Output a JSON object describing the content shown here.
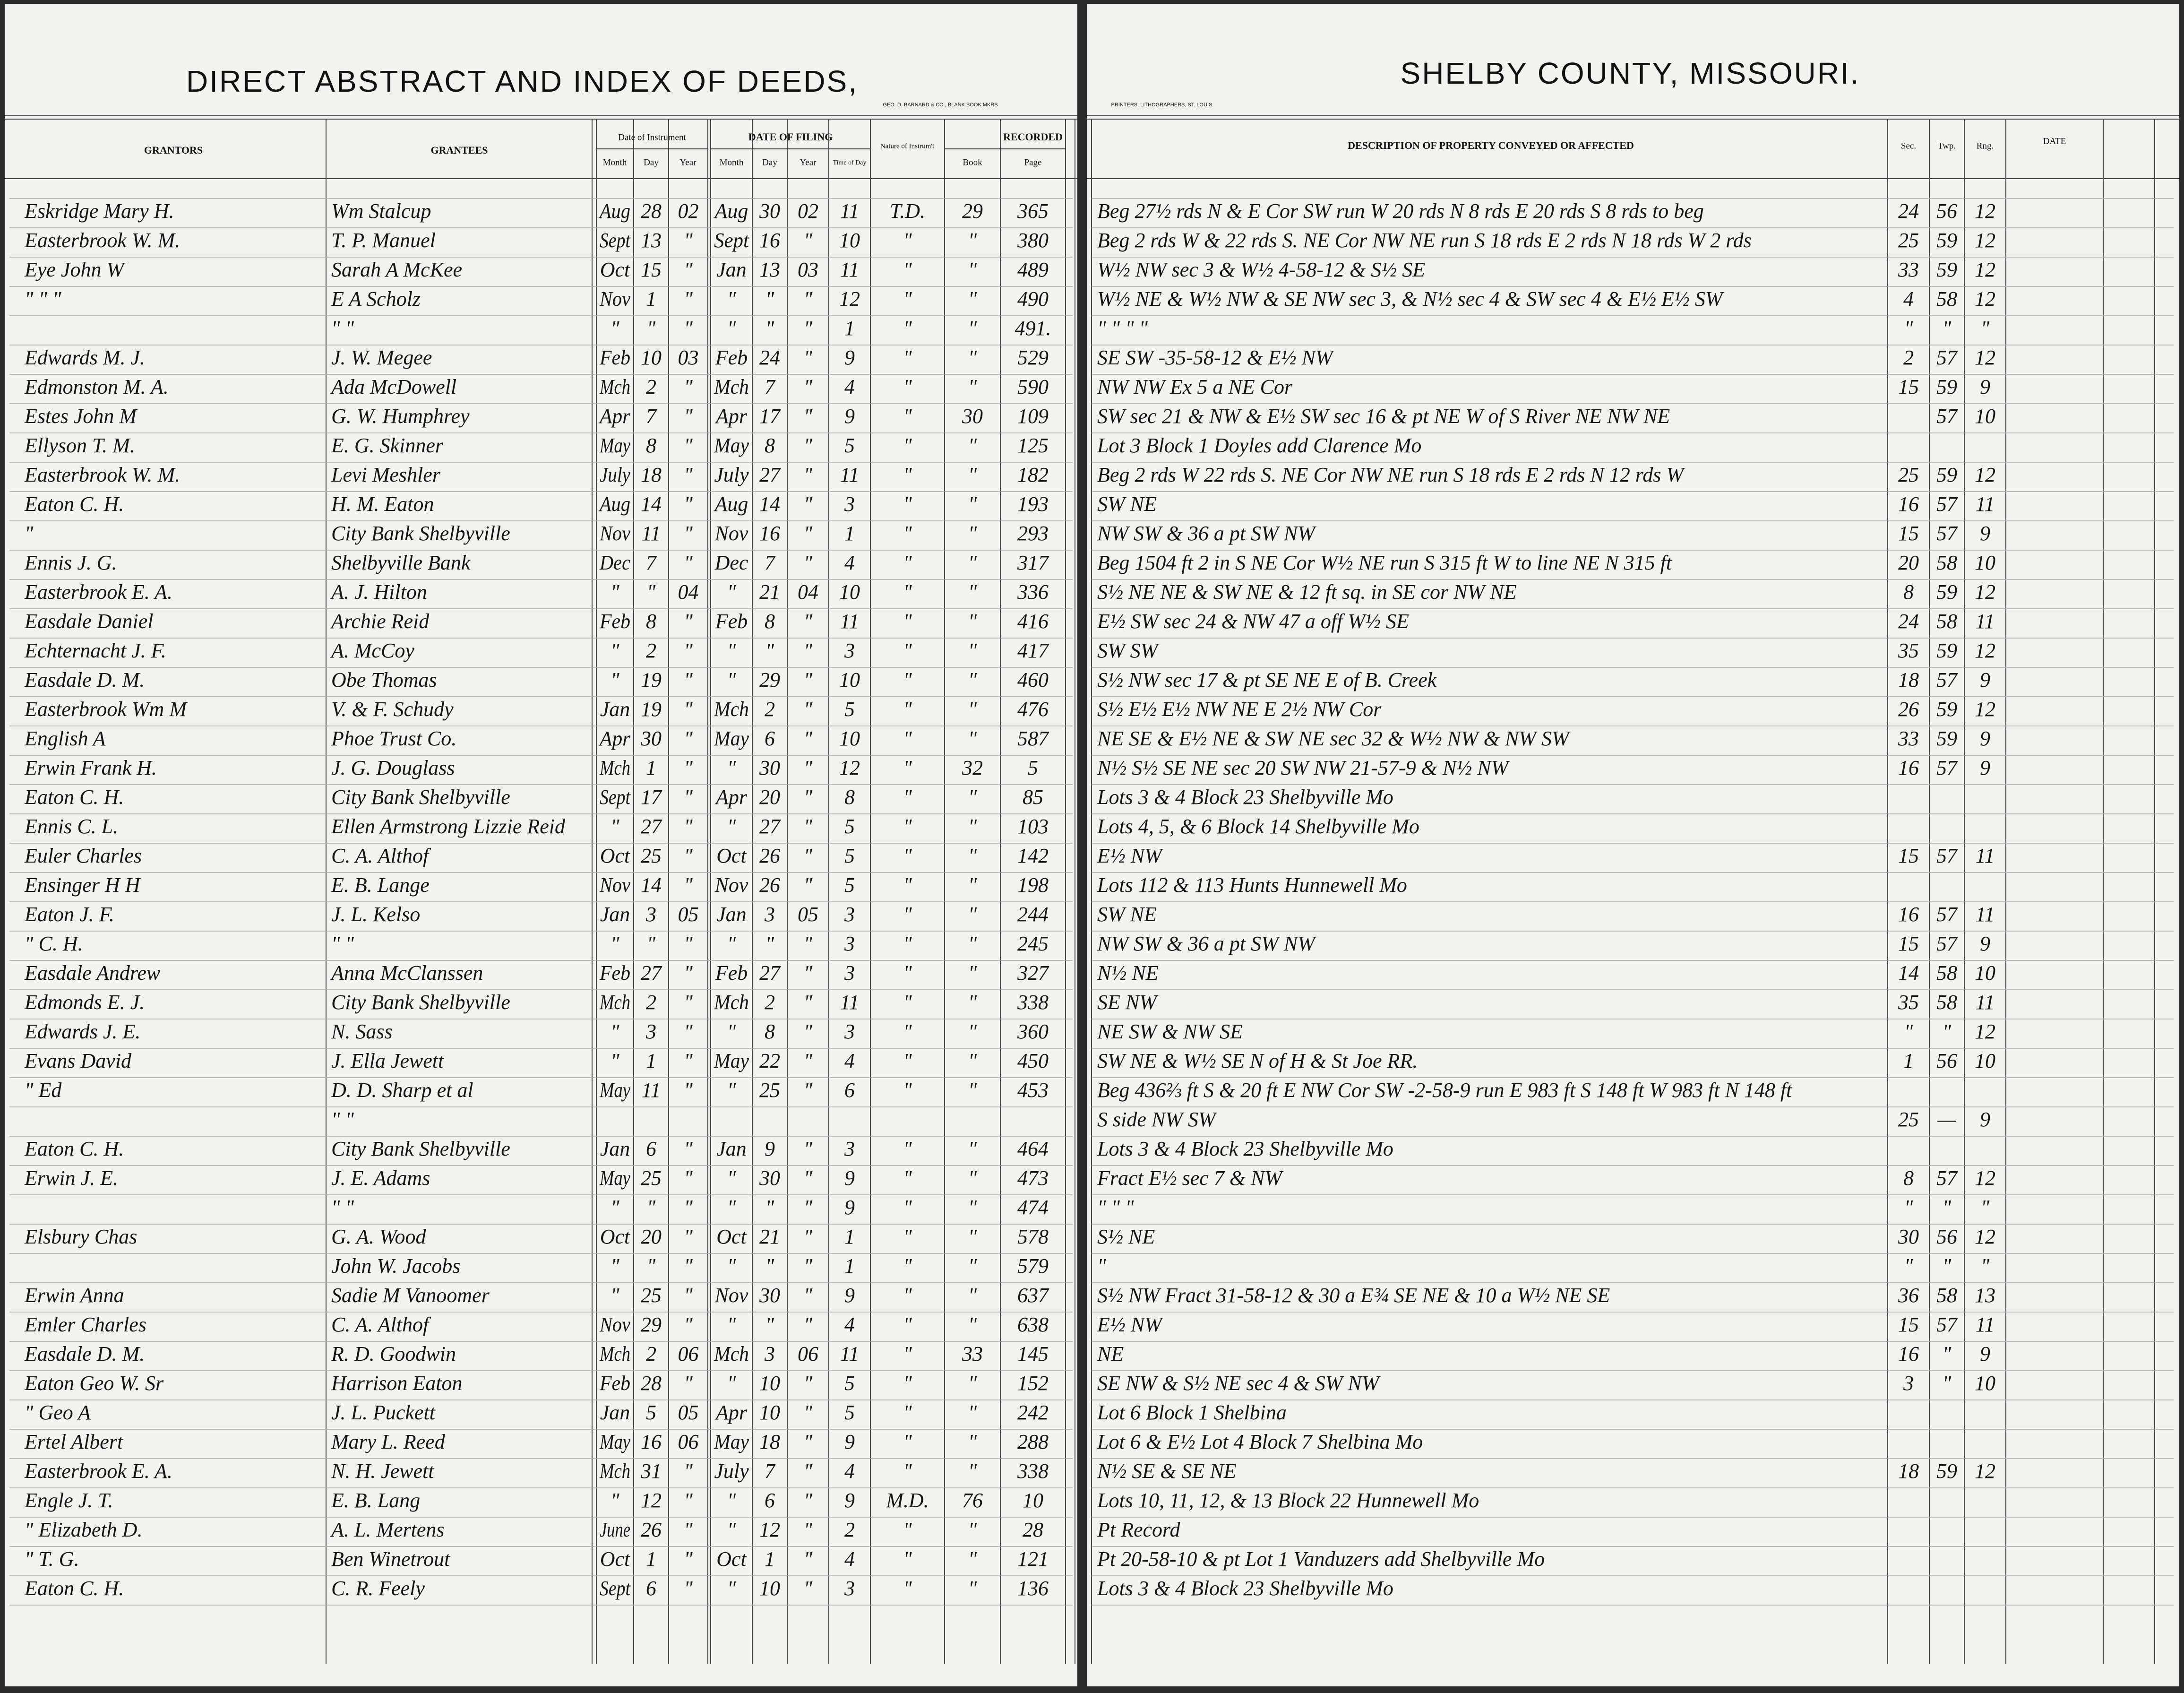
{
  "header": {
    "left_title": "DIRECT ABSTRACT AND INDEX OF DEEDS,",
    "right_title": "SHELBY COUNTY, MISSOURI.",
    "left_imprint": "GEO. D. BARNARD & CO., BLANK BOOK MKRS",
    "right_imprint": "PRINTERS, LITHOGRAPHERS, ST. LOUIS."
  },
  "table": {
    "columns": {
      "grantors": "GRANTORS",
      "grantees": "GRANTEES",
      "instrument_date": "Date of Instrument",
      "filing_date": "DATE OF FILING",
      "nature": "Nature of Instrum't",
      "recorded": "RECORDED",
      "description": "DESCRIPTION OF PROPERTY CONVEYED OR AFFECTED",
      "sec": "Sec.",
      "twp": "Twp.",
      "rng": "Rng.",
      "date": "DATE"
    },
    "subcolumns": {
      "instrument": [
        "Month",
        "Day",
        "Year"
      ],
      "filing": [
        "Month",
        "Day",
        "Year",
        "Time of Day"
      ],
      "recorded": [
        "Book",
        "Page"
      ]
    },
    "rows": [
      [
        "Eskridge Mary H.",
        "Wm Stalcup",
        "Aug",
        "28",
        "02",
        "Aug",
        "30",
        "02",
        "11",
        "T.D.",
        "29",
        "365",
        "Beg 27½ rds N & E Cor SW run W 20 rds N 8 rds E 20 rds S 8 rds to beg",
        "24",
        "56",
        "12"
      ],
      [
        "Easterbrook W. M.",
        "T. P. Manuel",
        "Sept",
        "13",
        "\"",
        "Sept",
        "16",
        "\"",
        "10",
        "\"",
        "\"",
        "380",
        "Beg 2 rds W & 22 rds S. NE Cor NW NE run S 18 rds E 2 rds N 18 rds W 2 rds",
        "25",
        "59",
        "12"
      ],
      [
        "Eye John W",
        "Sarah A McKee",
        "Oct",
        "15",
        "\"",
        "Jan",
        "13",
        "03",
        "11",
        "\"",
        "\"",
        "489",
        "W½ NW sec 3 & W½ 4-58-12 & S½ SE",
        "33",
        "59",
        "12"
      ],
      [
        "\"  \"  \"",
        "E A Scholz",
        "Nov",
        "1",
        "\"",
        "\"",
        "\"",
        "\"",
        "12",
        "\"",
        "\"",
        "490",
        "W½ NE & W½ NW & SE NW sec 3, & N½ sec 4 & SW sec 4 & E½ E½ SW",
        "4",
        "58",
        "12"
      ],
      [
        null,
        "\"  \"",
        "\"",
        "\"",
        "\"",
        "\"",
        "\"",
        "\"",
        "1",
        "\"",
        "\"",
        "491.",
        "\"  \"  \"  \"",
        "\"",
        "\"",
        "\""
      ],
      [
        "Edwards M. J.",
        "J. W. Megee",
        "Feb",
        "10",
        "03",
        "Feb",
        "24",
        "\"",
        "9",
        "\"",
        "\"",
        "529",
        "SE SW -35-58-12 & E½ NW",
        "2",
        "57",
        "12"
      ],
      [
        "Edmonston M. A.",
        "Ada McDowell",
        "Mch",
        "2",
        "\"",
        "Mch",
        "7",
        "\"",
        "4",
        "\"",
        "\"",
        "590",
        "NW NW Ex 5 a NE Cor",
        "15",
        "59",
        "9"
      ],
      [
        "Estes John M",
        "G. W. Humphrey",
        "Apr",
        "7",
        "\"",
        "Apr",
        "17",
        "\"",
        "9",
        "\"",
        "30",
        "109",
        "SW sec 21 & NW & E½ SW sec 16 & pt NE W of S River NE NW NE",
        null,
        "57",
        "10"
      ],
      [
        "Ellyson T. M.",
        "E. G. Skinner",
        "May",
        "8",
        "\"",
        "May",
        "8",
        "\"",
        "5",
        "\"",
        "\"",
        "125",
        "Lot 3 Block 1 Doyles add Clarence Mo",
        null,
        null,
        null
      ],
      [
        "Easterbrook W. M.",
        "Levi Meshler",
        "July",
        "18",
        "\"",
        "July",
        "27",
        "\"",
        "11",
        "\"",
        "\"",
        "182",
        "Beg 2 rds W 22 rds S. NE Cor NW NE run S 18 rds E 2 rds N 12 rds W",
        "25",
        "59",
        "12"
      ],
      [
        "Eaton C. H.",
        "H. M. Eaton",
        "Aug",
        "14",
        "\"",
        "Aug",
        "14",
        "\"",
        "3",
        "\"",
        "\"",
        "193",
        "SW NE",
        "16",
        "57",
        "11"
      ],
      [
        "\"",
        "City Bank Shelbyville",
        "Nov",
        "11",
        "\"",
        "Nov",
        "16",
        "\"",
        "1",
        "\"",
        "\"",
        "293",
        "NW SW & 36 a pt SW NW",
        "15",
        "57",
        "9"
      ],
      [
        "Ennis J. G.",
        "Shelbyville Bank",
        "Dec",
        "7",
        "\"",
        "Dec",
        "7",
        "\"",
        "4",
        "\"",
        "\"",
        "317",
        "Beg 1504 ft 2 in S NE Cor W½ NE run S 315 ft W to line NE N 315 ft",
        "20",
        "58",
        "10"
      ],
      [
        "Easterbrook E. A.",
        "A. J. Hilton",
        "\"",
        "\"",
        "04",
        "\"",
        "21",
        "04",
        "10",
        "\"",
        "\"",
        "336",
        "S½ NE NE & SW NE & 12 ft sq. in SE cor NW NE",
        "8",
        "59",
        "12"
      ],
      [
        "Easdale Daniel",
        "Archie Reid",
        "Feb",
        "8",
        "\"",
        "Feb",
        "8",
        "\"",
        "11",
        "\"",
        "\"",
        "416",
        "E½ SW sec 24 & NW 47 a off W½ SE",
        "24",
        "58",
        "11"
      ],
      [
        "Echternacht J. F.",
        "A. McCoy",
        "\"",
        "2",
        "\"",
        "\"",
        "\"",
        "\"",
        "3",
        "\"",
        "\"",
        "417",
        "SW SW",
        "35",
        "59",
        "12"
      ],
      [
        "Easdale D. M.",
        "Obe Thomas",
        "\"",
        "19",
        "\"",
        "\"",
        "29",
        "\"",
        "10",
        "\"",
        "\"",
        "460",
        "S½ NW sec 17 & pt SE NE  E of B. Creek",
        "18",
        "57",
        "9"
      ],
      [
        "Easterbrook Wm M",
        "V. & F. Schudy",
        "Jan",
        "19",
        "\"",
        "Mch",
        "2",
        "\"",
        "5",
        "\"",
        "\"",
        "476",
        "S½ E½ E½ NW NE  E 2½ NW Cor",
        "26",
        "59",
        "12"
      ],
      [
        "English A",
        "Phoe Trust Co.",
        "Apr",
        "30",
        "\"",
        "May",
        "6",
        "\"",
        "10",
        "\"",
        "\"",
        "587",
        "NE SE & E½ NE & SW NE sec 32 & W½ NW & NW SW",
        "33",
        "59",
        "9"
      ],
      [
        "Erwin Frank H.",
        "J. G. Douglass",
        "Mch",
        "1",
        "\"",
        "\"",
        "30",
        "\"",
        "12",
        "\"",
        "32",
        "5",
        "N½ S½ SE NE sec 20 SW NW 21-57-9 & N½ NW",
        "16",
        "57",
        "9"
      ],
      [
        "Eaton C. H.",
        "City Bank Shelbyville",
        "Sept",
        "17",
        "\"",
        "Apr",
        "20",
        "\"",
        "8",
        "\"",
        "\"",
        "85",
        "Lots 3 & 4 Block 23 Shelbyville Mo",
        null,
        null,
        null
      ],
      [
        "Ennis C. L.",
        "Ellen Armstrong Lizzie Reid",
        "\"",
        "27",
        "\"",
        "\"",
        "27",
        "\"",
        "5",
        "\"",
        "\"",
        "103",
        "Lots 4, 5, & 6 Block 14 Shelbyville Mo",
        null,
        null,
        null
      ],
      [
        "Euler Charles",
        "C. A. Althof",
        "Oct",
        "25",
        "\"",
        "Oct",
        "26",
        "\"",
        "5",
        "\"",
        "\"",
        "142",
        "E½ NW",
        "15",
        "57",
        "11"
      ],
      [
        "Ensinger H H",
        "E. B. Lange",
        "Nov",
        "14",
        "\"",
        "Nov",
        "26",
        "\"",
        "5",
        "\"",
        "\"",
        "198",
        "Lots 112 & 113 Hunts Hunnewell Mo",
        null,
        null,
        null
      ],
      [
        "Eaton J. F.",
        "J. L. Kelso",
        "Jan",
        "3",
        "05",
        "Jan",
        "3",
        "05",
        "3",
        "\"",
        "\"",
        "244",
        "SW NE",
        "16",
        "57",
        "11"
      ],
      [
        "\"  C. H.",
        "\"  \"",
        "\"",
        "\"",
        "\"",
        "\"",
        "\"",
        "\"",
        "3",
        "\"",
        "\"",
        "245",
        "NW SW & 36 a pt SW NW",
        "15",
        "57",
        "9"
      ],
      [
        "Easdale Andrew",
        "Anna McClanssen",
        "Feb",
        "27",
        "\"",
        "Feb",
        "27",
        "\"",
        "3",
        "\"",
        "\"",
        "327",
        "N½ NE",
        "14",
        "58",
        "10"
      ],
      [
        "Edmonds E. J.",
        "City Bank Shelbyville",
        "Mch",
        "2",
        "\"",
        "Mch",
        "2",
        "\"",
        "11",
        "\"",
        "\"",
        "338",
        "SE NW",
        "35",
        "58",
        "11"
      ],
      [
        "Edwards J. E.",
        "N. Sass",
        "\"",
        "3",
        "\"",
        "\"",
        "8",
        "\"",
        "3",
        "\"",
        "\"",
        "360",
        "NE SW & NW SE",
        "\"",
        "\"",
        "12"
      ],
      [
        "Evans David",
        "J. Ella Jewett",
        "\"",
        "1",
        "\"",
        "May",
        "22",
        "\"",
        "4",
        "\"",
        "\"",
        "450",
        "SW NE & W½ SE  N of H & St Joe RR.",
        "1",
        "56",
        "10"
      ],
      [
        "\"  Ed",
        "D. D. Sharp et al",
        "May",
        "11",
        "\"",
        "\"",
        "25",
        "\"",
        "6",
        "\"",
        "\"",
        "453",
        "Beg 436⅔ ft S & 20 ft E NW Cor SW -2-58-9 run E 983 ft S 148 ft W 983 ft N 148 ft",
        null,
        null,
        null
      ],
      [
        null,
        "\"  \"",
        null,
        null,
        null,
        null,
        null,
        null,
        null,
        null,
        null,
        null,
        "S side NW SW",
        "25",
        "—",
        "9"
      ],
      [
        "Eaton C. H.",
        "City Bank Shelbyville",
        "Jan",
        "6",
        "\"",
        "Jan",
        "9",
        "\"",
        "3",
        "\"",
        "\"",
        "464",
        "Lots 3 & 4 Block 23 Shelbyville Mo",
        null,
        null,
        null
      ],
      [
        "Erwin J. E.",
        "J. E. Adams",
        "May",
        "25",
        "\"",
        "\"",
        "30",
        "\"",
        "9",
        "\"",
        "\"",
        "473",
        "Fract E½ sec 7 & NW",
        "8",
        "57",
        "12"
      ],
      [
        null,
        "\"  \"",
        "\"",
        "\"",
        "\"",
        "\"",
        "\"",
        "\"",
        "9",
        "\"",
        "\"",
        "474",
        "\"  \"  \"",
        "\"",
        "\"",
        "\""
      ],
      [
        "Elsbury Chas",
        "G. A. Wood",
        "Oct",
        "20",
        "\"",
        "Oct",
        "21",
        "\"",
        "1",
        "\"",
        "\"",
        "578",
        "S½ NE",
        "30",
        "56",
        "12"
      ],
      [
        null,
        "John W. Jacobs",
        "\"",
        "\"",
        "\"",
        "\"",
        "\"",
        "\"",
        "1",
        "\"",
        "\"",
        "579",
        "\"",
        "\"",
        "\"",
        "\""
      ],
      [
        "Erwin Anna",
        "Sadie M Vanoomer",
        "\"",
        "25",
        "\"",
        "Nov",
        "30",
        "\"",
        "9",
        "\"",
        "\"",
        "637",
        "S½ NW Fract 31-58-12 & 30 a E¾ SE NE & 10 a W½ NE SE",
        "36",
        "58",
        "13"
      ],
      [
        "Emler Charles",
        "C. A. Althof",
        "Nov",
        "29",
        "\"",
        "\"",
        "\"",
        "\"",
        "4",
        "\"",
        "\"",
        "638",
        "E½ NW",
        "15",
        "57",
        "11"
      ],
      [
        "Easdale D. M.",
        "R. D. Goodwin",
        "Mch",
        "2",
        "06",
        "Mch",
        "3",
        "06",
        "11",
        "\"",
        "33",
        "145",
        "NE",
        "16",
        "\"",
        "9"
      ],
      [
        "Eaton Geo W. Sr",
        "Harrison Eaton",
        "Feb",
        "28",
        "\"",
        "\"",
        "10",
        "\"",
        "5",
        "\"",
        "\"",
        "152",
        "SE NW & S½ NE sec 4 & SW NW",
        "3",
        "\"",
        "10"
      ],
      [
        "\"  Geo A",
        "J. L. Puckett",
        "Jan",
        "5",
        "05",
        "Apr",
        "10",
        "\"",
        "5",
        "\"",
        "\"",
        "242",
        "Lot 6 Block 1 Shelbina",
        null,
        null,
        null
      ],
      [
        "Ertel Albert",
        "Mary L. Reed",
        "May",
        "16",
        "06",
        "May",
        "18",
        "\"",
        "9",
        "\"",
        "\"",
        "288",
        "Lot 6 & E½ Lot 4 Block 7 Shelbina Mo",
        null,
        null,
        null
      ],
      [
        "Easterbrook E. A.",
        "N. H. Jewett",
        "Mch",
        "31",
        "\"",
        "July",
        "7",
        "\"",
        "4",
        "\"",
        "\"",
        "338",
        "N½ SE & SE NE",
        "18",
        "59",
        "12"
      ],
      [
        "Engle J. T.",
        "E. B. Lang",
        "\"",
        "12",
        "\"",
        "\"",
        "6",
        "\"",
        "9",
        "M.D.",
        "76",
        "10",
        "Lots 10, 11, 12, & 13 Block 22 Hunnewell Mo",
        null,
        null,
        null
      ],
      [
        "\"  Elizabeth D.",
        "A. L. Mertens",
        "June",
        "26",
        "\"",
        "\"",
        "12",
        "\"",
        "2",
        "\"",
        "\"",
        "28",
        "Pt Record",
        null,
        null,
        null
      ],
      [
        "\"  T. G.",
        "Ben Winetrout",
        "Oct",
        "1",
        "\"",
        "Oct",
        "1",
        "\"",
        "4",
        "\"",
        "\"",
        "121",
        "Pt 20-58-10 & pt Lot 1 Vanduzers add Shelbyville Mo",
        null,
        null,
        null
      ],
      [
        "Eaton C. H.",
        "C. R. Feely",
        "Sept",
        "6",
        "\"",
        "\"",
        "10",
        "\"",
        "3",
        "\"",
        "\"",
        "136",
        "Lots 3 & 4 Block 23 Shelbyville Mo",
        null,
        null,
        null
      ]
    ]
  }
}
